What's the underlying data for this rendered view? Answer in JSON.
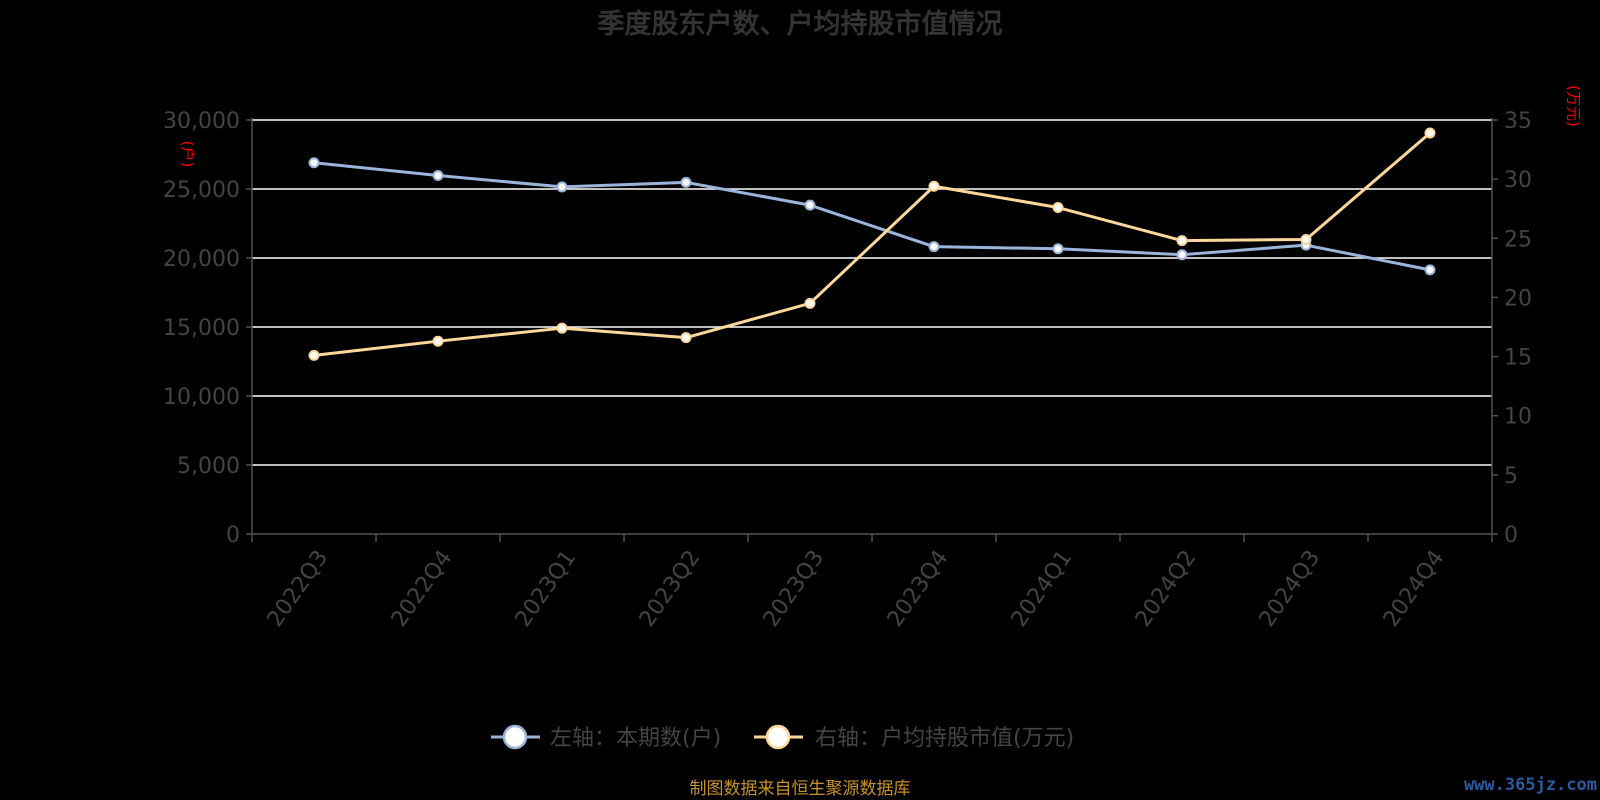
{
  "chart_data": {
    "type": "line",
    "title": "季度股东户数、户均持股市值情况",
    "categories": [
      "2022Q3",
      "2022Q4",
      "2023Q1",
      "2023Q2",
      "2023Q3",
      "2023Q4",
      "2024Q1",
      "2024Q2",
      "2024Q3",
      "2024Q4"
    ],
    "left_axis": {
      "unit": "(户)",
      "ylim": [
        0,
        30000
      ],
      "ticks": [
        "0",
        "5,000",
        "10,000",
        "15,000",
        "20,000",
        "25,000",
        "30,000"
      ]
    },
    "right_axis": {
      "unit": "(万元)",
      "ylim": [
        0,
        35
      ],
      "ticks": [
        "0",
        "5",
        "10",
        "15",
        "20",
        "25",
        "30",
        "35"
      ]
    },
    "series": [
      {
        "name": "左轴：本期数(户)",
        "axis": "left",
        "color": "#9ab4dc",
        "values": [
          26900,
          25980,
          25150,
          25480,
          23830,
          20820,
          20670,
          20240,
          20930,
          19140
        ]
      },
      {
        "name": "右轴：户均持股市值(万元)",
        "axis": "right",
        "color": "#fcd79a",
        "values": [
          15.1,
          16.3,
          17.4,
          16.6,
          19.5,
          29.4,
          27.6,
          24.8,
          24.9,
          33.9
        ]
      }
    ],
    "grid": true,
    "legend": "bottom-center"
  },
  "footer": {
    "source": "制图数据来自恒生聚源数据库",
    "watermark": "www.365jz.com"
  }
}
